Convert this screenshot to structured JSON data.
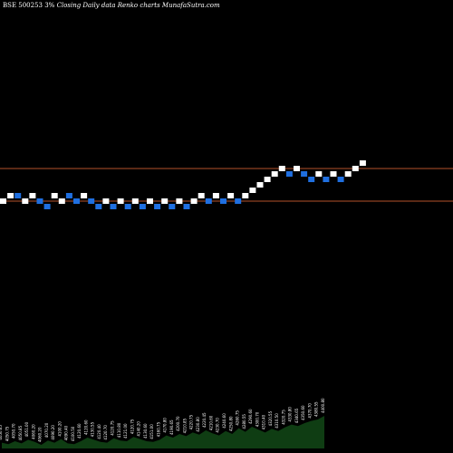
{
  "header": {
    "symbol": "BSE 500253 3%",
    "caption": "Closing Daily data Renko charts MunafaSutra.com"
  },
  "chart_data": {
    "type": "renko",
    "title": "BSE 500253 3%",
    "subtitle": "Closing Daily data Renko charts MunafaSutra.com",
    "colors": {
      "up": "#ffffff",
      "down": "#1f6fe0",
      "level": "#b5522a",
      "volume": "#0f3d13"
    },
    "brick_levels": [
      0,
      1,
      1,
      0,
      1,
      0,
      -1,
      1,
      0,
      1,
      0,
      1,
      0,
      -1,
      0,
      -1,
      0,
      -1,
      0,
      -1,
      0,
      -1,
      0,
      -1,
      0,
      -1,
      0,
      1,
      0,
      1,
      0,
      1,
      0,
      1,
      2,
      3,
      4,
      5,
      6,
      5,
      6,
      5,
      4,
      5,
      4,
      5,
      4,
      5,
      6,
      7
    ],
    "brick_direction": [
      "u",
      "u",
      "d",
      "u",
      "u",
      "d",
      "d",
      "u",
      "u",
      "d",
      "d",
      "u",
      "d",
      "d",
      "u",
      "d",
      "u",
      "d",
      "u",
      "d",
      "u",
      "d",
      "u",
      "d",
      "u",
      "d",
      "u",
      "u",
      "d",
      "u",
      "d",
      "u",
      "d",
      "u",
      "u",
      "u",
      "u",
      "u",
      "u",
      "d",
      "u",
      "d",
      "d",
      "u",
      "d",
      "u",
      "d",
      "u",
      "u",
      "u"
    ],
    "resistance_level_index": 6,
    "support_level_index": 0,
    "volume_labels": [
      "4050.65",
      "4050.75",
      "4050.70",
      "4050.85",
      "4051.00",
      "4060.20",
      "4060.20",
      "4070.20",
      "4090.20",
      "4100.20",
      "4090.40",
      "4100.50",
      "4120.60",
      "4120.60",
      "4130.55",
      "4120.40",
      "4120.70",
      "4120.75",
      "4110.80",
      "4121.00",
      "4120.75",
      "4140.20",
      "4130.60",
      "4151.00",
      "4160.75",
      "4170.80",
      "4190.65",
      "4200.70",
      "4210.85",
      "4220.75",
      "4230.80",
      "4220.45",
      "4210.60",
      "4230.70",
      "4240.60",
      "4250.80",
      "4260.75",
      "4280.55",
      "4290.60",
      "4300.70",
      "4310.40",
      "4320.55",
      "4310.50",
      "4320.75",
      "4330.80",
      "4340.65",
      "4350.60",
      "4370.70",
      "4380.55",
      "4400.80"
    ],
    "volume_heights": [
      0.08,
      0.06,
      0.1,
      0.07,
      0.12,
      0.09,
      0.05,
      0.11,
      0.08,
      0.13,
      0.07,
      0.06,
      0.1,
      0.15,
      0.12,
      0.09,
      0.08,
      0.14,
      0.11,
      0.1,
      0.16,
      0.13,
      0.1,
      0.09,
      0.12,
      0.18,
      0.15,
      0.2,
      0.17,
      0.22,
      0.19,
      0.25,
      0.21,
      0.18,
      0.24,
      0.2,
      0.28,
      0.23,
      0.3,
      0.26,
      0.22,
      0.27,
      0.24,
      0.29,
      0.33,
      0.31,
      0.35,
      0.38,
      0.4,
      0.45
    ]
  }
}
